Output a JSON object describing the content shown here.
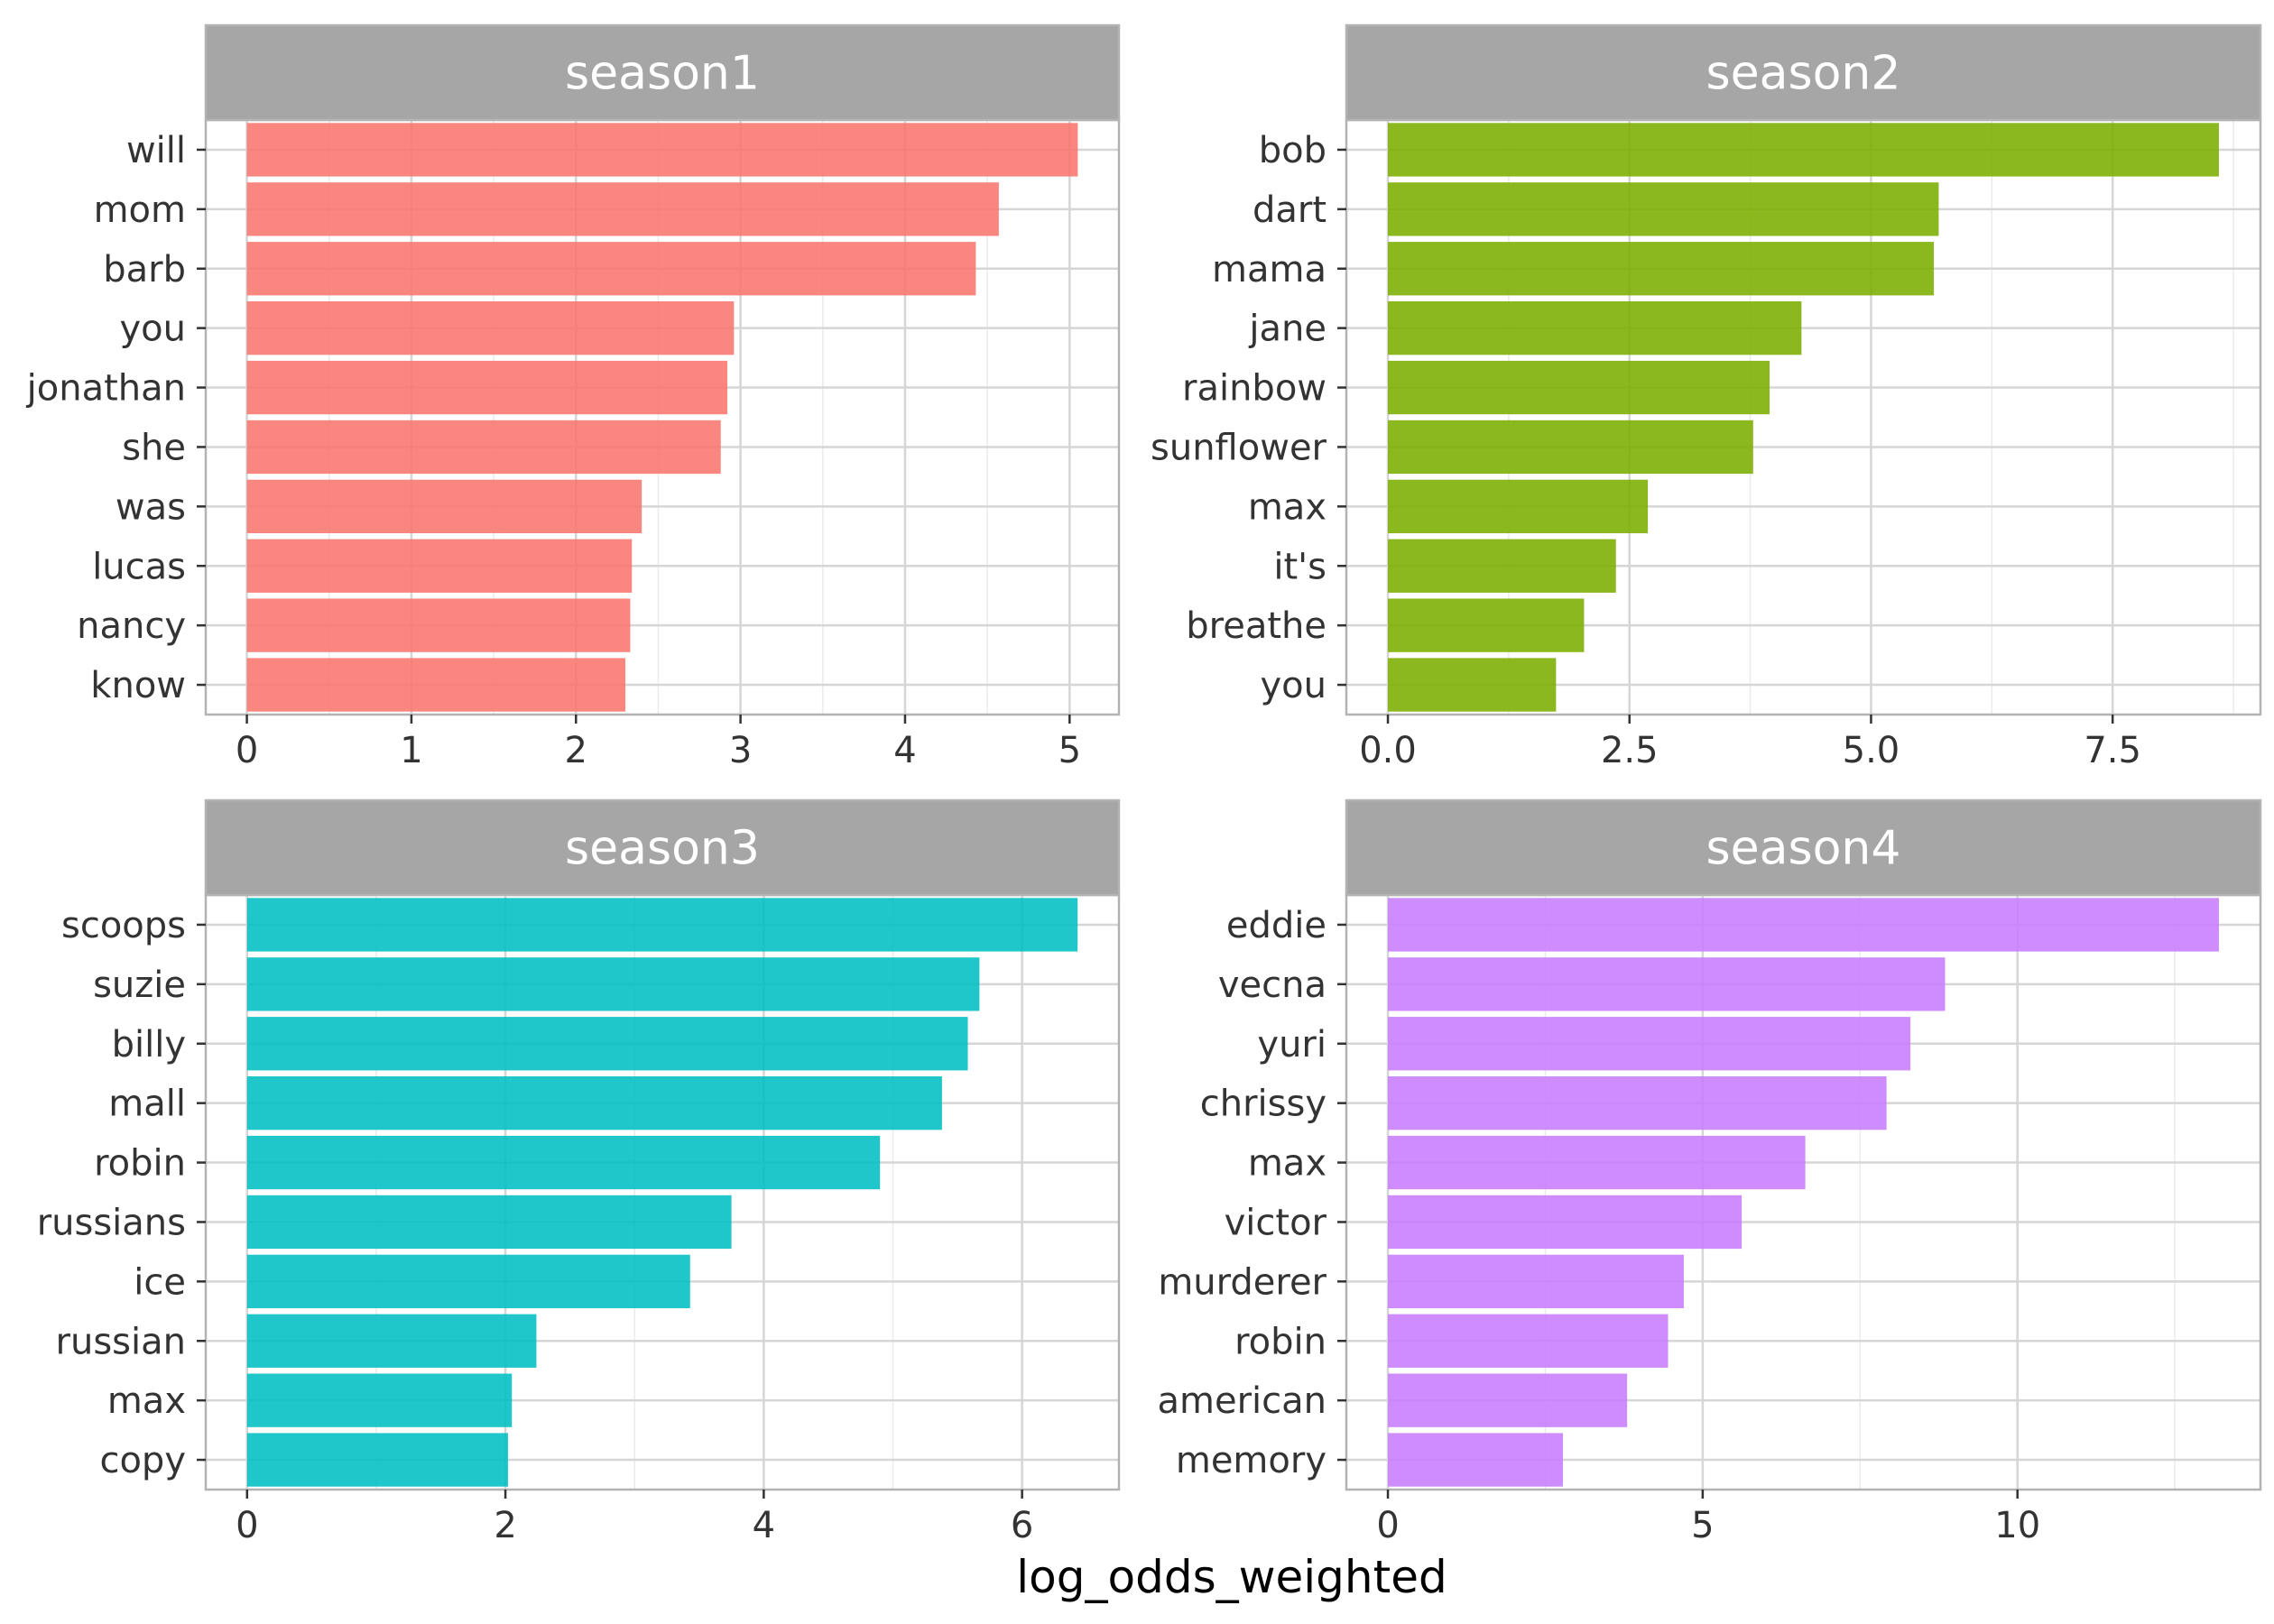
{
  "chart_data": {
    "type": "bar",
    "orientation": "horizontal",
    "xlabel": "log_odds_weighted",
    "grid": true,
    "legend": "none",
    "panels": [
      {
        "title": "season1",
        "color": "#F8766D",
        "categories": [
          "will",
          "mom",
          "barb",
          "you",
          "jonathan",
          "she",
          "was",
          "lucas",
          "nancy",
          "know"
        ],
        "values": [
          5.05,
          4.57,
          4.43,
          2.96,
          2.92,
          2.88,
          2.4,
          2.34,
          2.33,
          2.3
        ],
        "xlim": [
          -0.25,
          5.3
        ],
        "ticks": [
          0,
          1,
          2,
          3,
          4,
          5
        ],
        "tick_labels": [
          "0",
          "1",
          "2",
          "3",
          "4",
          "5"
        ]
      },
      {
        "title": "season2",
        "color": "#7CAE00",
        "categories": [
          "bob",
          "dart",
          "mama",
          "jane",
          "rainbow",
          "sunflower",
          "max",
          "it's",
          "breathe",
          "you"
        ],
        "values": [
          8.6,
          5.7,
          5.65,
          4.28,
          3.95,
          3.78,
          2.69,
          2.36,
          2.03,
          1.74
        ],
        "xlim": [
          -0.43,
          9.03
        ],
        "ticks": [
          0,
          2.5,
          5,
          7.5
        ],
        "tick_labels": [
          "0.0",
          "2.5",
          "5.0",
          "7.5"
        ]
      },
      {
        "title": "season3",
        "color": "#00BFC4",
        "categories": [
          "scoops",
          "suzie",
          "billy",
          "mall",
          "robin",
          "russians",
          "ice",
          "russian",
          "max",
          "copy"
        ],
        "values": [
          6.43,
          5.67,
          5.58,
          5.38,
          4.9,
          3.75,
          3.43,
          2.24,
          2.05,
          2.02
        ],
        "xlim": [
          -0.32,
          6.75
        ],
        "ticks": [
          0,
          2,
          4,
          6
        ],
        "tick_labels": [
          "0",
          "2",
          "4",
          "6"
        ]
      },
      {
        "title": "season4",
        "color": "#C77CFF",
        "categories": [
          "eddie",
          "vecna",
          "yuri",
          "chrissy",
          "max",
          "victor",
          "murderer",
          "robin",
          "american",
          "memory"
        ],
        "values": [
          13.2,
          8.85,
          8.3,
          7.92,
          6.63,
          5.62,
          4.7,
          4.45,
          3.8,
          2.78
        ],
        "xlim": [
          -0.66,
          13.86
        ],
        "ticks": [
          0,
          5,
          10
        ],
        "tick_labels": [
          "0",
          "5",
          "10"
        ]
      }
    ]
  }
}
